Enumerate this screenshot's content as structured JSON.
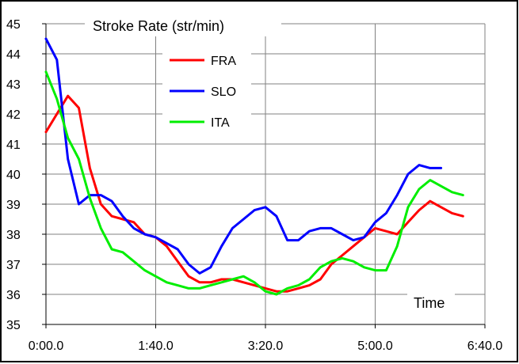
{
  "chart_data": {
    "type": "line",
    "title": "Stroke Rate (str/min)",
    "xlabel": "Time",
    "ylabel": "",
    "xlim": [
      0,
      400
    ],
    "ylim": [
      35,
      45
    ],
    "x_ticks": [
      {
        "value": 0,
        "label": "0:00.0"
      },
      {
        "value": 100,
        "label": "1:40.0"
      },
      {
        "value": 200,
        "label": "3:20.0"
      },
      {
        "value": 300,
        "label": "5:00.0"
      },
      {
        "value": 400,
        "label": "6:40.0"
      }
    ],
    "y_ticks": [
      35,
      36,
      37,
      38,
      39,
      40,
      41,
      42,
      43,
      44,
      45
    ],
    "grid": "vertical lines at x ticks, horizontal lines at y ticks",
    "legend_position": "top-center",
    "series": [
      {
        "name": "FRA",
        "color": "#ff0000",
        "points": [
          [
            0,
            41.4
          ],
          [
            10,
            42.0
          ],
          [
            20,
            42.6
          ],
          [
            30,
            42.2
          ],
          [
            40,
            40.2
          ],
          [
            50,
            39.0
          ],
          [
            60,
            38.6
          ],
          [
            70,
            38.5
          ],
          [
            80,
            38.4
          ],
          [
            90,
            38.0
          ],
          [
            100,
            37.9
          ],
          [
            110,
            37.6
          ],
          [
            120,
            37.1
          ],
          [
            130,
            36.6
          ],
          [
            140,
            36.4
          ],
          [
            150,
            36.4
          ],
          [
            160,
            36.5
          ],
          [
            170,
            36.5
          ],
          [
            180,
            36.4
          ],
          [
            190,
            36.3
          ],
          [
            200,
            36.2
          ],
          [
            210,
            36.1
          ],
          [
            220,
            36.1
          ],
          [
            230,
            36.2
          ],
          [
            240,
            36.3
          ],
          [
            250,
            36.5
          ],
          [
            260,
            37.0
          ],
          [
            270,
            37.3
          ],
          [
            280,
            37.6
          ],
          [
            290,
            37.9
          ],
          [
            300,
            38.2
          ],
          [
            310,
            38.1
          ],
          [
            320,
            38.0
          ],
          [
            330,
            38.4
          ],
          [
            340,
            38.8
          ],
          [
            350,
            39.1
          ],
          [
            360,
            38.9
          ],
          [
            370,
            38.7
          ],
          [
            380,
            38.6
          ]
        ]
      },
      {
        "name": "SLO",
        "color": "#0000ff",
        "points": [
          [
            0,
            44.5
          ],
          [
            10,
            43.8
          ],
          [
            20,
            40.5
          ],
          [
            30,
            39.0
          ],
          [
            40,
            39.3
          ],
          [
            50,
            39.3
          ],
          [
            60,
            39.1
          ],
          [
            70,
            38.6
          ],
          [
            80,
            38.2
          ],
          [
            90,
            38.0
          ],
          [
            100,
            37.9
          ],
          [
            110,
            37.7
          ],
          [
            120,
            37.5
          ],
          [
            130,
            37.0
          ],
          [
            140,
            36.7
          ],
          [
            150,
            36.9
          ],
          [
            160,
            37.6
          ],
          [
            170,
            38.2
          ],
          [
            180,
            38.5
          ],
          [
            190,
            38.8
          ],
          [
            200,
            38.9
          ],
          [
            210,
            38.6
          ],
          [
            220,
            37.8
          ],
          [
            230,
            37.8
          ],
          [
            240,
            38.1
          ],
          [
            250,
            38.2
          ],
          [
            260,
            38.2
          ],
          [
            270,
            38.0
          ],
          [
            280,
            37.8
          ],
          [
            290,
            37.9
          ],
          [
            300,
            38.4
          ],
          [
            310,
            38.7
          ],
          [
            320,
            39.3
          ],
          [
            330,
            40.0
          ],
          [
            340,
            40.3
          ],
          [
            350,
            40.2
          ],
          [
            360,
            40.2
          ]
        ]
      },
      {
        "name": "ITA",
        "color": "#00ee00",
        "points": [
          [
            0,
            43.4
          ],
          [
            10,
            42.5
          ],
          [
            20,
            41.2
          ],
          [
            30,
            40.5
          ],
          [
            40,
            39.2
          ],
          [
            50,
            38.2
          ],
          [
            60,
            37.5
          ],
          [
            70,
            37.4
          ],
          [
            80,
            37.1
          ],
          [
            90,
            36.8
          ],
          [
            100,
            36.6
          ],
          [
            110,
            36.4
          ],
          [
            120,
            36.3
          ],
          [
            130,
            36.2
          ],
          [
            140,
            36.2
          ],
          [
            150,
            36.3
          ],
          [
            160,
            36.4
          ],
          [
            170,
            36.5
          ],
          [
            180,
            36.6
          ],
          [
            190,
            36.4
          ],
          [
            200,
            36.1
          ],
          [
            210,
            36.0
          ],
          [
            220,
            36.2
          ],
          [
            230,
            36.3
          ],
          [
            240,
            36.5
          ],
          [
            250,
            36.9
          ],
          [
            260,
            37.1
          ],
          [
            270,
            37.2
          ],
          [
            280,
            37.1
          ],
          [
            290,
            36.9
          ],
          [
            300,
            36.8
          ],
          [
            310,
            36.8
          ],
          [
            320,
            37.6
          ],
          [
            330,
            38.9
          ],
          [
            340,
            39.5
          ],
          [
            350,
            39.8
          ],
          [
            360,
            39.6
          ],
          [
            370,
            39.4
          ],
          [
            380,
            39.3
          ]
        ]
      }
    ]
  }
}
